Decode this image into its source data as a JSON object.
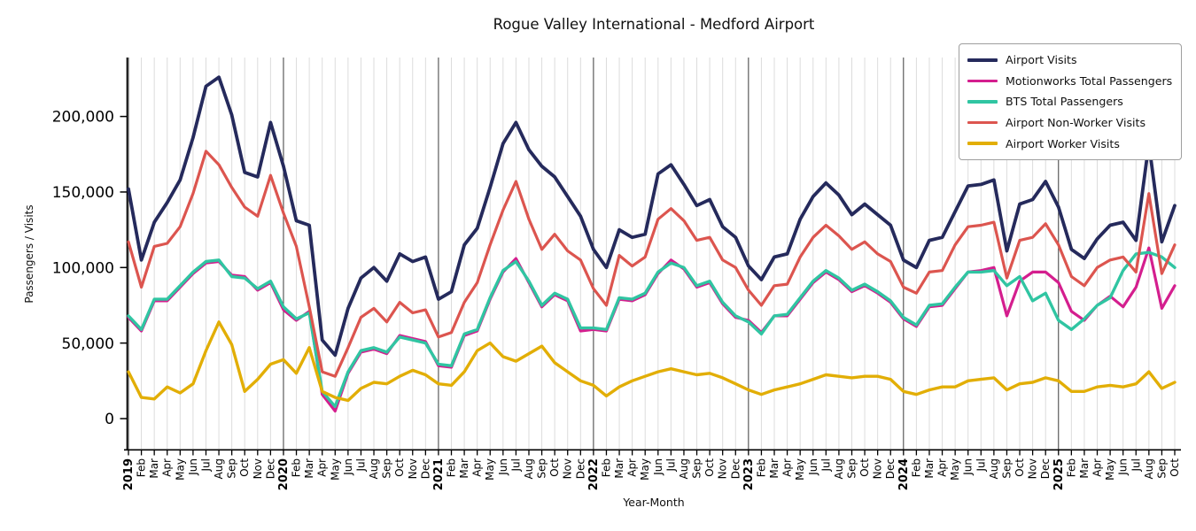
{
  "chart_data": {
    "type": "line",
    "title": "Rogue Valley International - Medford Airport",
    "xlabel": "Year-Month",
    "ylabel": "Passengers / Visits",
    "background": "#ffffff",
    "axis_color": "#000000",
    "grid": {
      "vertical_monthly": true,
      "horizontal": false,
      "minor_color": "#dcdcdc",
      "year_line_color": "#3a3a3a"
    },
    "legend": {
      "position": "upper right"
    },
    "x_tick_rotation_deg": 90,
    "ylim": [
      -21000,
      239000
    ],
    "yticks": [
      {
        "value": 0,
        "label": "0"
      },
      {
        "value": 50000,
        "label": "50,000"
      },
      {
        "value": 100000,
        "label": "100,000"
      },
      {
        "value": 150000,
        "label": "150,000"
      },
      {
        "value": 200000,
        "label": "200,000"
      }
    ],
    "x_labels": [
      "2019",
      "Feb",
      "Mar",
      "Apr",
      "May",
      "Jun",
      "Jul",
      "Aug",
      "Sep",
      "Oct",
      "Nov",
      "Dec",
      "2020",
      "Feb",
      "Mar",
      "Apr",
      "May",
      "Jun",
      "Jul",
      "Aug",
      "Sep",
      "Oct",
      "Nov",
      "Dec",
      "2021",
      "Feb",
      "Mar",
      "Apr",
      "May",
      "Jun",
      "Jul",
      "Aug",
      "Sep",
      "Oct",
      "Nov",
      "Dec",
      "2022",
      "Feb",
      "Mar",
      "Apr",
      "May",
      "Jun",
      "Jul",
      "Aug",
      "Sep",
      "Oct",
      "Nov",
      "Dec",
      "2023",
      "Feb",
      "Mar",
      "Apr",
      "May",
      "Jun",
      "Jul",
      "Aug",
      "Sep",
      "Oct",
      "Nov",
      "Dec",
      "2024",
      "Feb",
      "Mar",
      "Apr",
      "May",
      "Jun",
      "Jul",
      "Aug",
      "Sep",
      "Oct",
      "Nov",
      "Dec",
      "2025",
      "Feb",
      "Mar",
      "Apr",
      "May",
      "Jun",
      "Jul",
      "Aug",
      "Sep",
      "Oct"
    ],
    "series": [
      {
        "name": "Airport Visits",
        "color": "#252a5c",
        "width": 3.8,
        "values": [
          152000,
          105000,
          130000,
          143000,
          158000,
          186000,
          220000,
          226000,
          201000,
          163000,
          160000,
          196000,
          167000,
          131000,
          128000,
          52000,
          42000,
          73000,
          93000,
          100000,
          91000,
          109000,
          104000,
          107000,
          79000,
          84000,
          115000,
          126000,
          153000,
          182000,
          196000,
          178000,
          167000,
          160000,
          147000,
          134000,
          112000,
          100000,
          125000,
          120000,
          122000,
          162000,
          168000,
          155000,
          141000,
          145000,
          127000,
          120000,
          101000,
          92000,
          107000,
          109000,
          132000,
          147000,
          156000,
          148000,
          135000,
          142000,
          135000,
          128000,
          105000,
          100000,
          118000,
          120000,
          137000,
          154000,
          155000,
          158000,
          111000,
          142000,
          145000,
          157000,
          140000,
          112000,
          106000,
          119000,
          128000,
          130000,
          118000,
          182000,
          117000,
          141000
        ]
      },
      {
        "name": "Motionworks Total Passengers",
        "color": "#d41e8e",
        "width": 3.2,
        "values": [
          67000,
          58000,
          78000,
          78000,
          87000,
          96000,
          103000,
          104000,
          95000,
          94000,
          85000,
          90000,
          72000,
          65000,
          71000,
          16000,
          5000,
          30000,
          44000,
          46000,
          43000,
          55000,
          53000,
          51000,
          35000,
          34000,
          55000,
          58000,
          79000,
          97000,
          106000,
          90000,
          74000,
          82000,
          78000,
          58000,
          59000,
          58000,
          79000,
          78000,
          82000,
          96000,
          105000,
          99000,
          87000,
          90000,
          76000,
          67000,
          65000,
          57000,
          68000,
          68000,
          79000,
          90000,
          97000,
          92000,
          84000,
          88000,
          83000,
          77000,
          66000,
          61000,
          74000,
          75000,
          86000,
          97000,
          98000,
          100000,
          68000,
          91000,
          97000,
          97000,
          90000,
          71000,
          65000,
          75000,
          81000,
          74000,
          87000,
          113000,
          73000,
          88000
        ]
      },
      {
        "name": "BTS Total Passengers",
        "color": "#30c5a2",
        "width": 3.4,
        "values": [
          68000,
          59000,
          79000,
          79000,
          88000,
          97000,
          104000,
          105000,
          94000,
          93000,
          86000,
          91000,
          74000,
          66000,
          70000,
          18000,
          8000,
          31000,
          45000,
          47000,
          44000,
          54000,
          52000,
          50000,
          36000,
          35000,
          56000,
          59000,
          80000,
          98000,
          104000,
          91000,
          75000,
          83000,
          79000,
          60000,
          60000,
          59000,
          80000,
          79000,
          83000,
          97000,
          103000,
          100000,
          88000,
          91000,
          77000,
          68000,
          64000,
          56000,
          68000,
          69000,
          80000,
          91000,
          98000,
          93000,
          85000,
          89000,
          84000,
          78000,
          67000,
          62000,
          75000,
          76000,
          87000,
          97000,
          97000,
          98000,
          88000,
          94000,
          78000,
          83000,
          65000,
          59000,
          66000,
          75000,
          80000,
          98000,
          109000,
          110000,
          107000,
          100000
        ]
      },
      {
        "name": "Airport Non-Worker Visits",
        "color": "#dc554f",
        "width": 3.2,
        "values": [
          117000,
          87000,
          114000,
          116000,
          127000,
          149000,
          177000,
          168000,
          153000,
          140000,
          134000,
          161000,
          136000,
          114000,
          74000,
          31000,
          28000,
          47000,
          67000,
          73000,
          64000,
          77000,
          70000,
          72000,
          54000,
          57000,
          77000,
          90000,
          115000,
          138000,
          157000,
          132000,
          112000,
          122000,
          111000,
          105000,
          86000,
          75000,
          108000,
          101000,
          107000,
          132000,
          139000,
          131000,
          118000,
          120000,
          105000,
          100000,
          85000,
          75000,
          88000,
          89000,
          107000,
          120000,
          128000,
          121000,
          112000,
          117000,
          109000,
          104000,
          87000,
          83000,
          97000,
          98000,
          115000,
          127000,
          128000,
          130000,
          93000,
          118000,
          120000,
          129000,
          115000,
          94000,
          88000,
          100000,
          105000,
          107000,
          97000,
          149000,
          96000,
          115000
        ]
      },
      {
        "name": "Airport Worker Visits",
        "color": "#e2ae06",
        "width": 3.4,
        "values": [
          31000,
          14000,
          13000,
          21000,
          17000,
          23000,
          45000,
          64000,
          49000,
          18000,
          26000,
          36000,
          39000,
          30000,
          47000,
          18000,
          14000,
          12000,
          20000,
          24000,
          23000,
          28000,
          32000,
          29000,
          23000,
          22000,
          31000,
          45000,
          50000,
          41000,
          38000,
          43000,
          48000,
          37000,
          31000,
          25000,
          22000,
          15000,
          21000,
          25000,
          28000,
          31000,
          33000,
          31000,
          29000,
          30000,
          27000,
          23000,
          19000,
          16000,
          19000,
          21000,
          23000,
          26000,
          29000,
          28000,
          27000,
          28000,
          28000,
          26000,
          18000,
          16000,
          19000,
          21000,
          21000,
          25000,
          26000,
          27000,
          19000,
          23000,
          24000,
          27000,
          25000,
          18000,
          18000,
          21000,
          22000,
          21000,
          23000,
          31000,
          20000,
          24000
        ]
      }
    ]
  }
}
